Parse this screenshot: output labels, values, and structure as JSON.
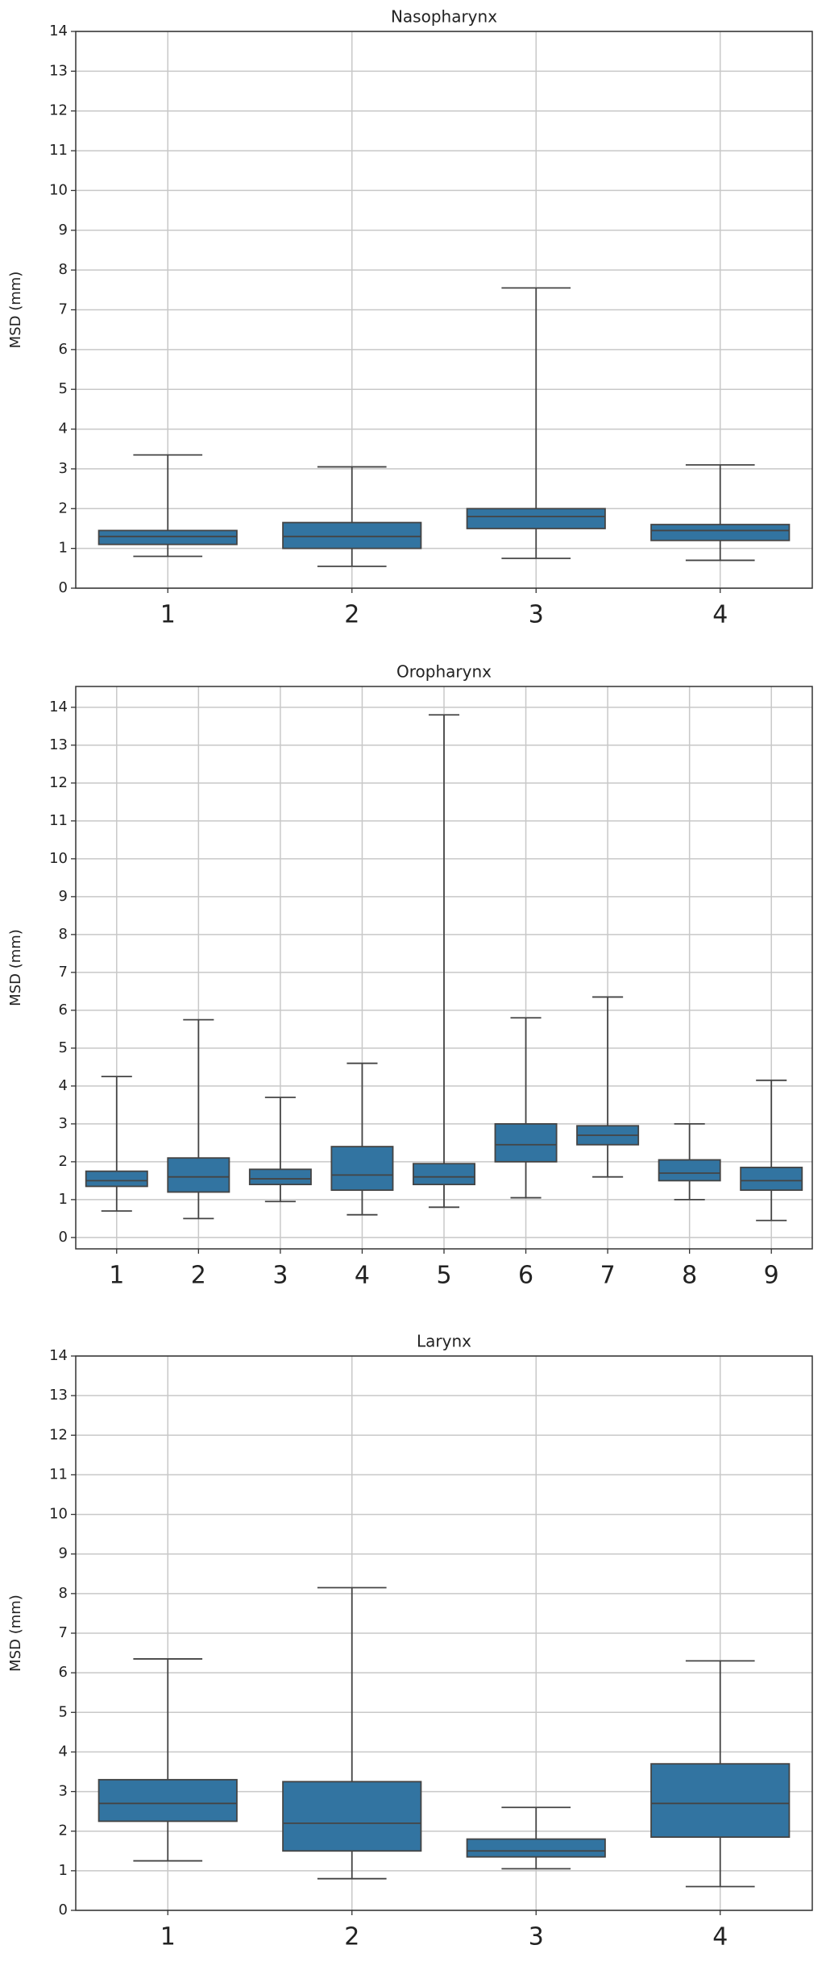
{
  "chart_data": [
    {
      "type": "box",
      "title": "Nasopharynx",
      "y_label": "MSD (mm)",
      "categories": [
        "1",
        "2",
        "3",
        "4"
      ],
      "whislo": [
        0.8,
        0.55,
        0.75,
        0.7
      ],
      "q1": [
        1.1,
        1.0,
        1.5,
        1.2
      ],
      "median": [
        1.3,
        1.3,
        1.8,
        1.45
      ],
      "q3": [
        1.45,
        1.65,
        2.0,
        1.6
      ],
      "whishi": [
        3.35,
        3.05,
        7.55,
        3.1
      ],
      "color": "#3274a1",
      "ylim": [
        0,
        14
      ],
      "yticks": [
        0,
        1,
        2,
        3,
        4,
        5,
        6,
        7,
        8,
        9,
        10,
        11,
        12,
        13,
        14
      ],
      "grid": true
    },
    {
      "type": "box",
      "title": "Oropharynx",
      "y_label": "MSD (mm)",
      "categories": [
        "1",
        "2",
        "3",
        "4",
        "5",
        "6",
        "7",
        "8",
        "9"
      ],
      "whislo": [
        0.7,
        0.5,
        0.95,
        0.6,
        0.8,
        1.05,
        1.6,
        1.0,
        0.45
      ],
      "q1": [
        1.35,
        1.2,
        1.4,
        1.25,
        1.4,
        2.0,
        2.45,
        1.5,
        1.25
      ],
      "median": [
        1.5,
        1.6,
        1.55,
        1.65,
        1.6,
        2.45,
        2.7,
        1.7,
        1.5
      ],
      "q3": [
        1.75,
        2.1,
        1.8,
        2.4,
        1.95,
        3.0,
        2.95,
        2.05,
        1.85
      ],
      "whishi": [
        4.25,
        5.75,
        3.7,
        4.6,
        13.8,
        5.8,
        6.35,
        3.0,
        4.15
      ],
      "color": "#3274a1",
      "ylim": [
        -0.3,
        14.55
      ],
      "yticks": [
        0,
        1,
        2,
        3,
        4,
        5,
        6,
        7,
        8,
        9,
        10,
        11,
        12,
        13,
        14
      ],
      "grid": true
    },
    {
      "type": "box",
      "title": "Larynx",
      "y_label": "MSD (mm)",
      "categories": [
        "1",
        "2",
        "3",
        "4"
      ],
      "whislo": [
        1.25,
        0.8,
        1.05,
        0.6
      ],
      "q1": [
        2.25,
        1.5,
        1.35,
        1.85
      ],
      "median": [
        2.7,
        2.2,
        1.5,
        2.7
      ],
      "q3": [
        3.3,
        3.25,
        1.8,
        3.7
      ],
      "whishi": [
        6.35,
        8.15,
        2.6,
        6.3
      ],
      "color": "#3274a1",
      "ylim": [
        0,
        14
      ],
      "yticks": [
        0,
        1,
        2,
        3,
        4,
        5,
        6,
        7,
        8,
        9,
        10,
        11,
        12,
        13,
        14
      ],
      "grid": true
    }
  ]
}
